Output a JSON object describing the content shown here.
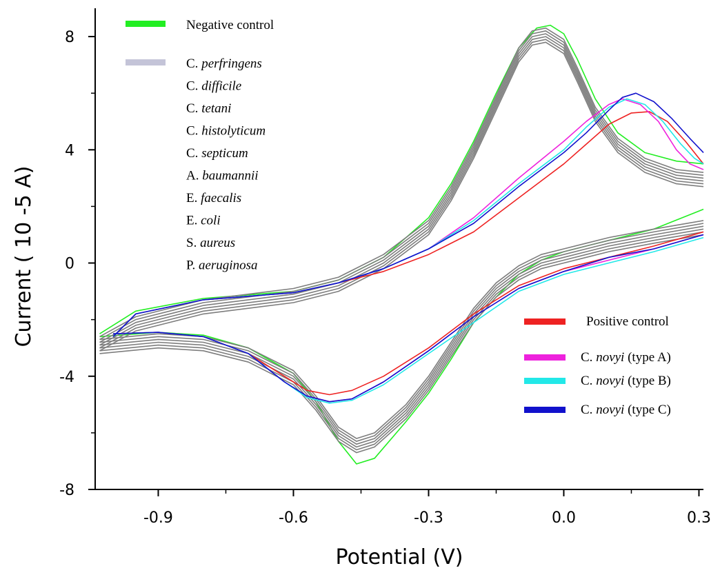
{
  "chart_data": {
    "type": "line",
    "title": "",
    "xlabel": "Potential (V)",
    "ylabel": "Current ( 10 -5 A)",
    "xlim": [
      -1.04,
      0.31
    ],
    "ylim": [
      -8,
      9
    ],
    "x_ticks": [
      {
        "value": -0.9,
        "label": "-0.9"
      },
      {
        "value": -0.6,
        "label": "-0.6"
      },
      {
        "value": -0.3,
        "label": "-0.3"
      },
      {
        "value": 0.0,
        "label": "0.0"
      },
      {
        "value": 0.3,
        "label": "0.3"
      }
    ],
    "y_ticks": [
      {
        "value": 8,
        "label": "8"
      },
      {
        "value": 4,
        "label": "4"
      },
      {
        "value": 0,
        "label": "0"
      },
      {
        "value": -4,
        "label": "-4"
      },
      {
        "value": -8,
        "label": "-8"
      }
    ],
    "grid": false,
    "colors": {
      "negative_control": "#22ee22",
      "gray_group": "#7d7d7d",
      "gray_legend": "#c4c4d8",
      "positive_control": "#ee2222",
      "type_a": "#ee22dd",
      "type_b": "#22e8e8",
      "type_c": "#1111cc"
    },
    "legend_left": {
      "negative": {
        "text": "Negative control"
      },
      "group": [
        {
          "prefix": "C. ",
          "italic": "perfringens"
        },
        {
          "prefix": "C. ",
          "italic": "difficile"
        },
        {
          "prefix": "C. ",
          "italic": "tetani"
        },
        {
          "prefix": "C. ",
          "italic": "histolyticum"
        },
        {
          "prefix": "C. ",
          "italic": "septicum"
        },
        {
          "prefix": "A. ",
          "italic": "baumannii"
        },
        {
          "prefix": "E. ",
          "italic": "faecalis"
        },
        {
          "prefix": "E. ",
          "italic": "coli"
        },
        {
          "prefix": "S. ",
          "italic": "aureus"
        },
        {
          "prefix": "P. ",
          "italic": "aeruginosa"
        }
      ]
    },
    "legend_right": [
      {
        "key": "positive_control",
        "prefix": "Positive control",
        "italic": "",
        "suffix": ""
      },
      {
        "key": "type_a",
        "prefix": "C. ",
        "italic": "novyi",
        "suffix": " (type A)"
      },
      {
        "key": "type_b",
        "prefix": "C. ",
        "italic": "novyi",
        "suffix": " (type B)"
      },
      {
        "key": "type_c",
        "prefix": "C. ",
        "italic": "novyi",
        "suffix": " (type C)"
      }
    ],
    "series": [
      {
        "key": "negative_control",
        "upper": [
          [
            -1.03,
            -2.5
          ],
          [
            -0.95,
            -1.7
          ],
          [
            -0.8,
            -1.25
          ],
          [
            -0.6,
            -1.0
          ],
          [
            -0.5,
            -0.6
          ],
          [
            -0.4,
            0.2
          ],
          [
            -0.3,
            1.6
          ],
          [
            -0.25,
            2.8
          ],
          [
            -0.2,
            4.3
          ],
          [
            -0.15,
            6.0
          ],
          [
            -0.1,
            7.6
          ],
          [
            -0.06,
            8.3
          ],
          [
            -0.03,
            8.4
          ],
          [
            0.0,
            8.1
          ],
          [
            0.03,
            7.2
          ],
          [
            0.07,
            5.8
          ],
          [
            0.12,
            4.6
          ],
          [
            0.18,
            3.9
          ],
          [
            0.25,
            3.6
          ],
          [
            0.31,
            3.5
          ]
        ],
        "lower": [
          [
            -1.03,
            -2.6
          ],
          [
            -0.9,
            -2.45
          ],
          [
            -0.8,
            -2.55
          ],
          [
            -0.7,
            -3.0
          ],
          [
            -0.6,
            -3.9
          ],
          [
            -0.55,
            -4.9
          ],
          [
            -0.5,
            -6.3
          ],
          [
            -0.46,
            -7.1
          ],
          [
            -0.42,
            -6.9
          ],
          [
            -0.35,
            -5.6
          ],
          [
            -0.3,
            -4.6
          ],
          [
            -0.25,
            -3.4
          ],
          [
            -0.2,
            -2.1
          ],
          [
            -0.15,
            -1.2
          ],
          [
            -0.1,
            -0.4
          ],
          [
            -0.05,
            0.1
          ],
          [
            0.0,
            0.4
          ],
          [
            0.05,
            0.6
          ],
          [
            0.1,
            0.8
          ],
          [
            0.2,
            1.2
          ],
          [
            0.31,
            1.9
          ]
        ]
      },
      {
        "key": "gray_group",
        "copies": [
          -0.2,
          -0.1,
          0.0,
          0.1,
          0.2,
          0.3
        ],
        "upper": [
          [
            -1.03,
            -2.9
          ],
          [
            -0.95,
            -2.2
          ],
          [
            -0.8,
            -1.6
          ],
          [
            -0.6,
            -1.2
          ],
          [
            -0.5,
            -0.8
          ],
          [
            -0.4,
            0.0
          ],
          [
            -0.3,
            1.2
          ],
          [
            -0.25,
            2.4
          ],
          [
            -0.2,
            3.9
          ],
          [
            -0.15,
            5.6
          ],
          [
            -0.1,
            7.3
          ],
          [
            -0.07,
            7.9
          ],
          [
            -0.04,
            8.0
          ],
          [
            0.0,
            7.6
          ],
          [
            0.03,
            6.6
          ],
          [
            0.07,
            5.2
          ],
          [
            0.12,
            4.1
          ],
          [
            0.18,
            3.4
          ],
          [
            0.25,
            3.0
          ],
          [
            0.31,
            2.9
          ]
        ],
        "lower": [
          [
            -1.03,
            -3.0
          ],
          [
            -0.9,
            -2.8
          ],
          [
            -0.8,
            -2.9
          ],
          [
            -0.7,
            -3.3
          ],
          [
            -0.6,
            -4.1
          ],
          [
            -0.55,
            -5.0
          ],
          [
            -0.5,
            -6.1
          ],
          [
            -0.46,
            -6.5
          ],
          [
            -0.42,
            -6.3
          ],
          [
            -0.35,
            -5.3
          ],
          [
            -0.3,
            -4.3
          ],
          [
            -0.25,
            -3.1
          ],
          [
            -0.2,
            -1.9
          ],
          [
            -0.15,
            -1.0
          ],
          [
            -0.1,
            -0.4
          ],
          [
            -0.05,
            0.0
          ],
          [
            0.0,
            0.2
          ],
          [
            0.05,
            0.4
          ],
          [
            0.1,
            0.6
          ],
          [
            0.2,
            0.9
          ],
          [
            0.31,
            1.2
          ]
        ]
      },
      {
        "key": "positive_control",
        "upper": [
          [
            -1.0,
            -2.6
          ],
          [
            -0.95,
            -1.8
          ],
          [
            -0.8,
            -1.3
          ],
          [
            -0.6,
            -1.05
          ],
          [
            -0.5,
            -0.7
          ],
          [
            -0.4,
            -0.3
          ],
          [
            -0.3,
            0.3
          ],
          [
            -0.2,
            1.1
          ],
          [
            -0.1,
            2.3
          ],
          [
            0.0,
            3.5
          ],
          [
            0.05,
            4.2
          ],
          [
            0.1,
            4.9
          ],
          [
            0.15,
            5.3
          ],
          [
            0.19,
            5.35
          ],
          [
            0.23,
            5.0
          ],
          [
            0.27,
            4.3
          ],
          [
            0.31,
            3.5
          ]
        ],
        "lower": [
          [
            -1.0,
            -2.5
          ],
          [
            -0.9,
            -2.45
          ],
          [
            -0.8,
            -2.6
          ],
          [
            -0.7,
            -3.2
          ],
          [
            -0.62,
            -4.0
          ],
          [
            -0.57,
            -4.5
          ],
          [
            -0.52,
            -4.65
          ],
          [
            -0.47,
            -4.5
          ],
          [
            -0.4,
            -4.0
          ],
          [
            -0.3,
            -3.0
          ],
          [
            -0.2,
            -1.8
          ],
          [
            -0.1,
            -0.8
          ],
          [
            0.0,
            -0.2
          ],
          [
            0.1,
            0.2
          ],
          [
            0.2,
            0.6
          ],
          [
            0.31,
            1.1
          ]
        ]
      },
      {
        "key": "type_a",
        "upper": [
          [
            -1.0,
            -2.6
          ],
          [
            -0.95,
            -1.8
          ],
          [
            -0.8,
            -1.3
          ],
          [
            -0.6,
            -1.05
          ],
          [
            -0.5,
            -0.7
          ],
          [
            -0.4,
            -0.2
          ],
          [
            -0.3,
            0.5
          ],
          [
            -0.2,
            1.6
          ],
          [
            -0.1,
            3.0
          ],
          [
            0.0,
            4.3
          ],
          [
            0.05,
            5.0
          ],
          [
            0.1,
            5.6
          ],
          [
            0.13,
            5.8
          ],
          [
            0.17,
            5.6
          ],
          [
            0.21,
            5.0
          ],
          [
            0.25,
            4.0
          ],
          [
            0.28,
            3.5
          ],
          [
            0.31,
            3.3
          ]
        ],
        "lower": [
          [
            -1.0,
            -2.5
          ],
          [
            -0.9,
            -2.45
          ],
          [
            -0.8,
            -2.6
          ],
          [
            -0.7,
            -3.2
          ],
          [
            -0.62,
            -4.2
          ],
          [
            -0.57,
            -4.7
          ],
          [
            -0.52,
            -4.9
          ],
          [
            -0.47,
            -4.8
          ],
          [
            -0.4,
            -4.2
          ],
          [
            -0.3,
            -3.1
          ],
          [
            -0.2,
            -1.9
          ],
          [
            -0.1,
            -0.9
          ],
          [
            0.0,
            -0.3
          ],
          [
            0.1,
            0.1
          ],
          [
            0.2,
            0.5
          ],
          [
            0.31,
            1.0
          ]
        ]
      },
      {
        "key": "type_b",
        "upper": [
          [
            -1.0,
            -2.6
          ],
          [
            -0.95,
            -1.8
          ],
          [
            -0.8,
            -1.3
          ],
          [
            -0.6,
            -1.05
          ],
          [
            -0.5,
            -0.7
          ],
          [
            -0.4,
            -0.2
          ],
          [
            -0.3,
            0.5
          ],
          [
            -0.2,
            1.5
          ],
          [
            -0.1,
            2.8
          ],
          [
            0.0,
            4.0
          ],
          [
            0.05,
            4.8
          ],
          [
            0.1,
            5.5
          ],
          [
            0.14,
            5.8
          ],
          [
            0.18,
            5.6
          ],
          [
            0.22,
            5.0
          ],
          [
            0.26,
            4.2
          ],
          [
            0.29,
            3.7
          ],
          [
            0.31,
            3.5
          ]
        ],
        "lower": [
          [
            -1.0,
            -2.5
          ],
          [
            -0.9,
            -2.45
          ],
          [
            -0.8,
            -2.6
          ],
          [
            -0.7,
            -3.2
          ],
          [
            -0.62,
            -4.2
          ],
          [
            -0.57,
            -4.75
          ],
          [
            -0.52,
            -4.95
          ],
          [
            -0.47,
            -4.85
          ],
          [
            -0.4,
            -4.3
          ],
          [
            -0.3,
            -3.2
          ],
          [
            -0.2,
            -2.1
          ],
          [
            -0.1,
            -1.0
          ],
          [
            0.0,
            -0.4
          ],
          [
            0.1,
            0.0
          ],
          [
            0.2,
            0.4
          ],
          [
            0.31,
            0.9
          ]
        ]
      },
      {
        "key": "type_c",
        "upper": [
          [
            -1.0,
            -2.6
          ],
          [
            -0.95,
            -1.8
          ],
          [
            -0.8,
            -1.3
          ],
          [
            -0.6,
            -1.05
          ],
          [
            -0.5,
            -0.7
          ],
          [
            -0.4,
            -0.2
          ],
          [
            -0.3,
            0.5
          ],
          [
            -0.2,
            1.4
          ],
          [
            -0.1,
            2.7
          ],
          [
            0.0,
            3.9
          ],
          [
            0.05,
            4.6
          ],
          [
            0.1,
            5.4
          ],
          [
            0.13,
            5.85
          ],
          [
            0.16,
            6.0
          ],
          [
            0.2,
            5.7
          ],
          [
            0.24,
            5.1
          ],
          [
            0.28,
            4.4
          ],
          [
            0.31,
            3.9
          ]
        ],
        "lower": [
          [
            -1.0,
            -2.5
          ],
          [
            -0.9,
            -2.45
          ],
          [
            -0.8,
            -2.6
          ],
          [
            -0.7,
            -3.2
          ],
          [
            -0.62,
            -4.2
          ],
          [
            -0.57,
            -4.7
          ],
          [
            -0.52,
            -4.9
          ],
          [
            -0.47,
            -4.8
          ],
          [
            -0.4,
            -4.2
          ],
          [
            -0.3,
            -3.1
          ],
          [
            -0.2,
            -1.9
          ],
          [
            -0.1,
            -0.9
          ],
          [
            0.0,
            -0.3
          ],
          [
            0.1,
            0.2
          ],
          [
            0.2,
            0.5
          ],
          [
            0.31,
            1.0
          ]
        ]
      }
    ]
  }
}
